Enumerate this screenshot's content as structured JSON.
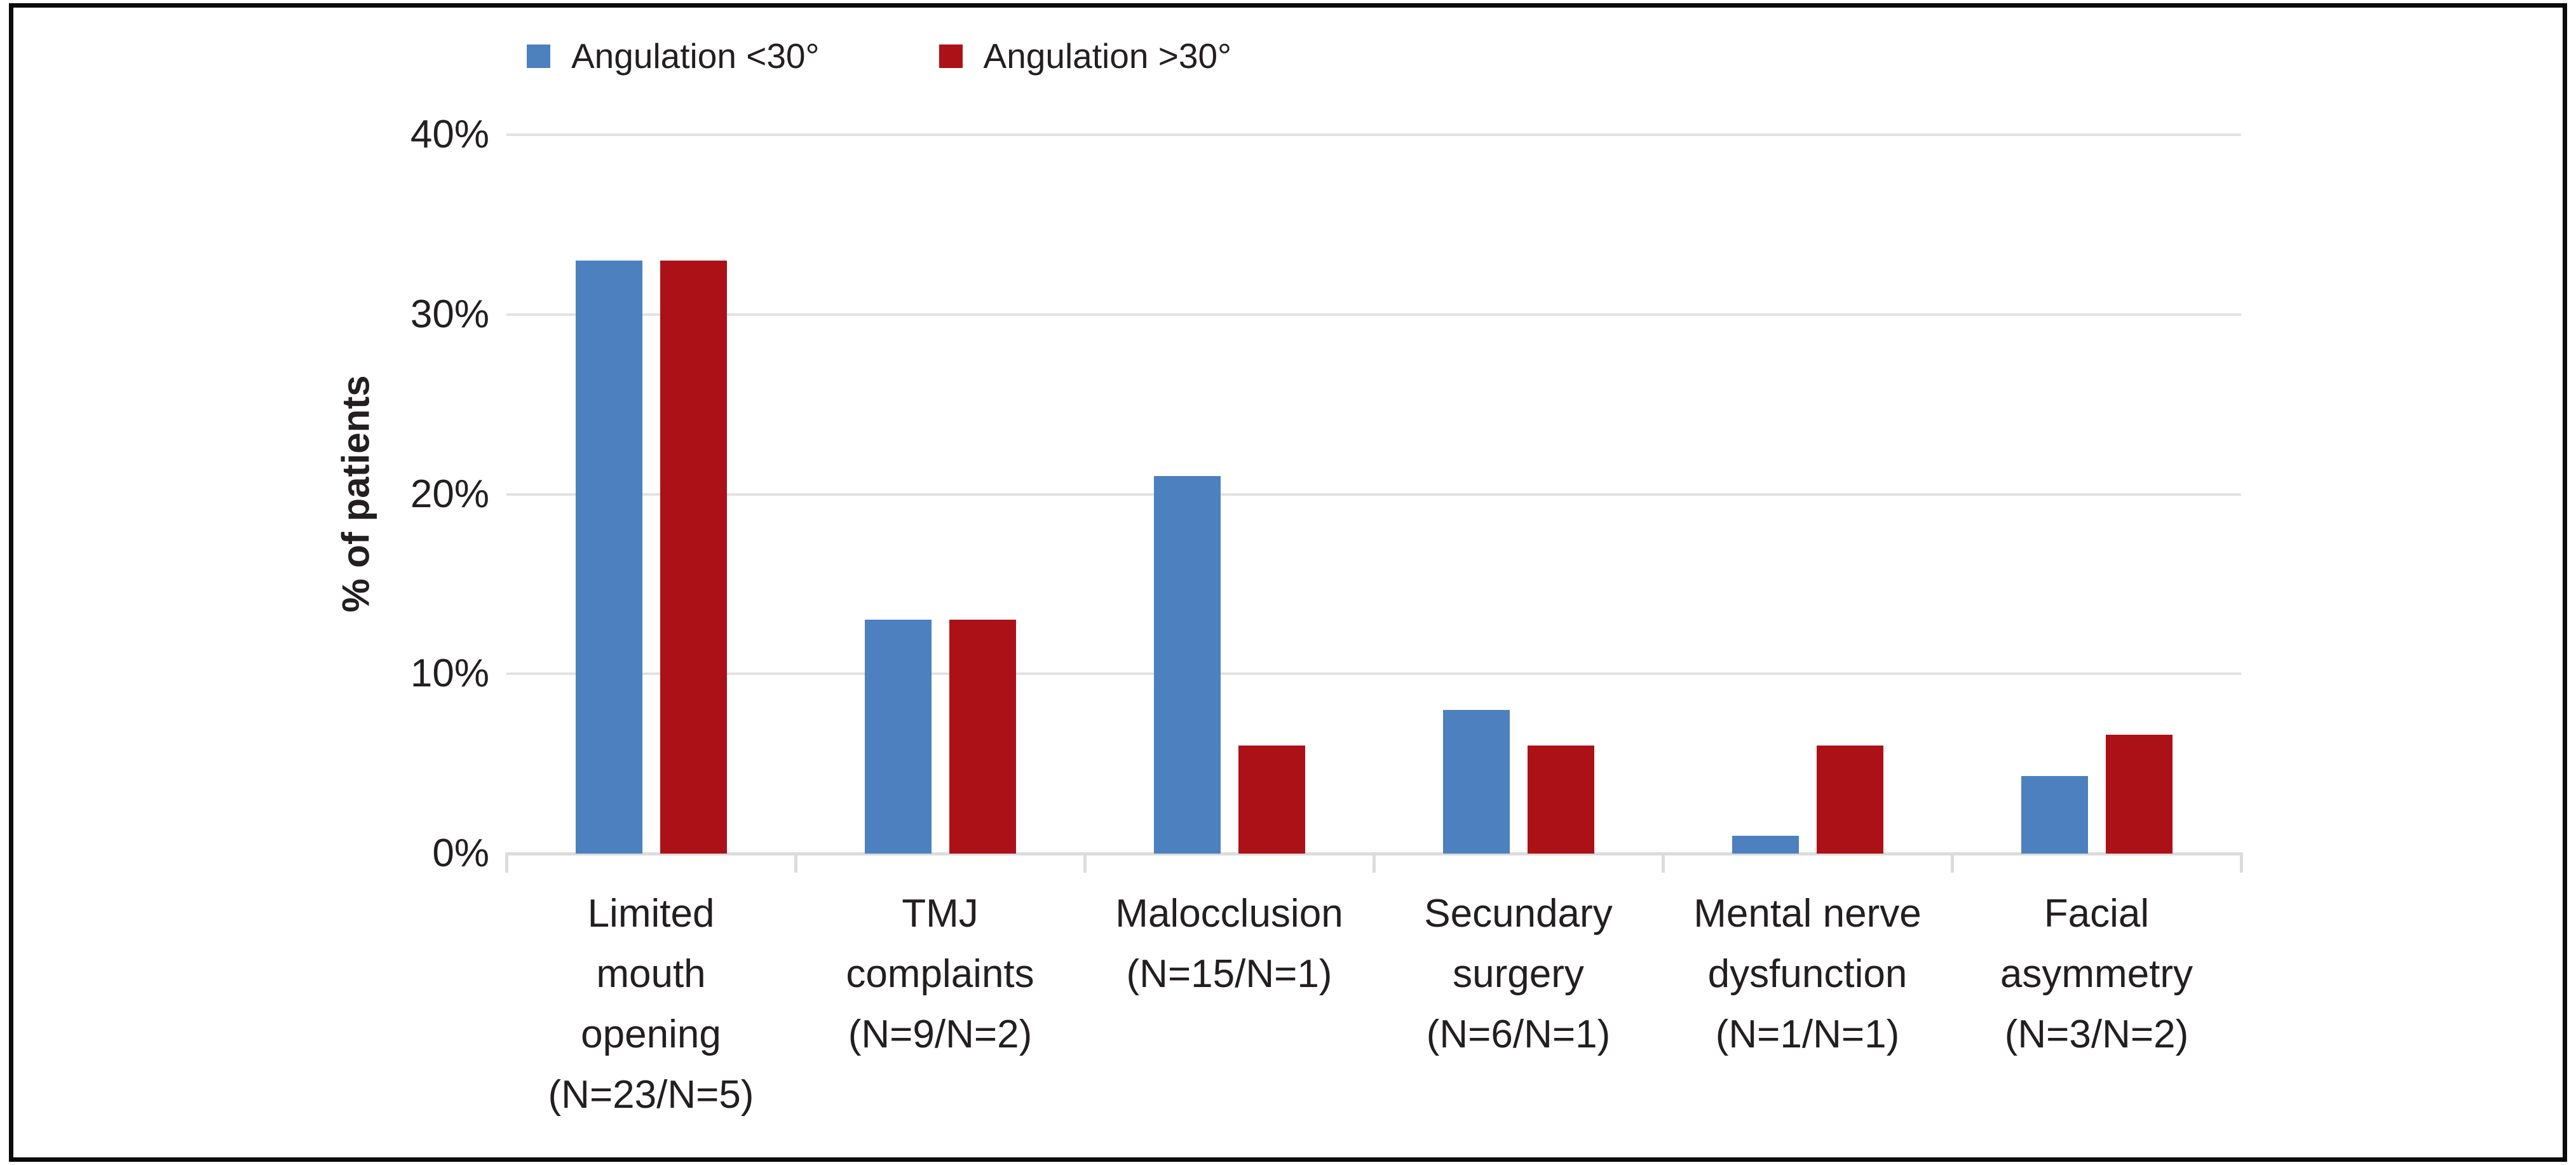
{
  "figure": {
    "background": "#ffffff",
    "border_color": "#0b0b0b"
  },
  "legend": {
    "position": "top-left",
    "items": [
      {
        "label": "Angulation <30°",
        "color": "#4c80bf"
      },
      {
        "label": "Angulation >30°",
        "color": "#ac1117"
      }
    ]
  },
  "chart_data": {
    "type": "bar",
    "title": "",
    "xlabel": "",
    "ylabel": "% of patients",
    "ylim": [
      0,
      40
    ],
    "yticks": [
      0,
      10,
      20,
      30,
      40
    ],
    "ytick_labels": [
      "0%",
      "10%",
      "20%",
      "30%",
      "40%"
    ],
    "grid": true,
    "gridline_color": "#e2e2e2",
    "axis_line_color": "#dcdcdc",
    "categories": [
      "Limited mouth opening (N=23/N=5)",
      "TMJ complaints (N=9/N=2)",
      "Malocclusion (N=15/N=1)",
      "Secundary surgery (N=6/N=1)",
      "Mental nerve dysfunction (N=1/N=1)",
      "Facial asymmetry (N=3/N=2)"
    ],
    "category_lines": [
      [
        "Limited",
        "mouth",
        "opening",
        "(N=23/N=5)"
      ],
      [
        "TMJ",
        "complaints",
        "(N=9/N=2)"
      ],
      [
        "Malocclusion",
        "(N=15/N=1)"
      ],
      [
        "Secundary",
        "surgery",
        "(N=6/N=1)"
      ],
      [
        "Mental nerve",
        "dysfunction",
        "(N=1/N=1)"
      ],
      [
        "Facial",
        "asymmetry",
        "(N=3/N=2)"
      ]
    ],
    "series": [
      {
        "name": "Angulation <30°",
        "color": "#4c80bf",
        "values": [
          33,
          13,
          21,
          8,
          1,
          4.3
        ]
      },
      {
        "name": "Angulation >30°",
        "color": "#ac1117",
        "values": [
          33,
          13,
          6,
          6,
          6,
          6.6
        ]
      }
    ]
  }
}
